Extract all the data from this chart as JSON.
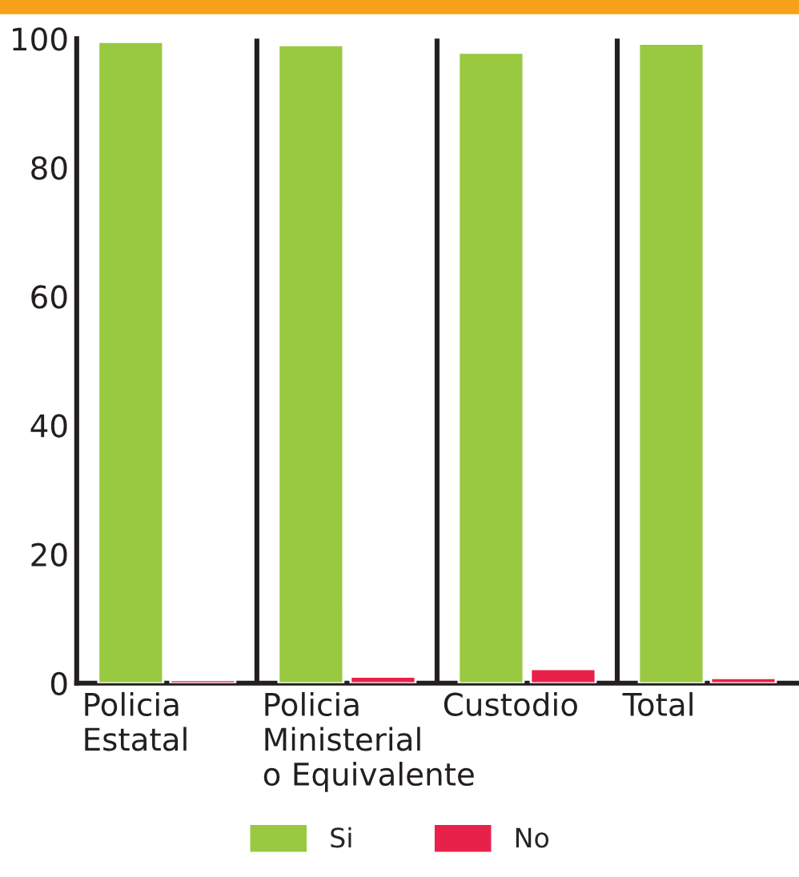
{
  "chart_data": {
    "type": "bar",
    "categories": [
      "Policia\nEstatal",
      "Policia\nMinisterial\no Equivalente",
      "Custodio",
      "Total"
    ],
    "series": [
      {
        "name": "Si",
        "color": "#99c941",
        "values": [
          99.5,
          99.0,
          97.8,
          99.2
        ]
      },
      {
        "name": "No",
        "color": "#e8214a",
        "values": [
          0.5,
          1.0,
          2.2,
          0.8
        ]
      }
    ],
    "ylim": [
      0,
      100
    ],
    "yticks": [
      0,
      20,
      40,
      60,
      80,
      100
    ],
    "grid": false,
    "legend": "bottom"
  }
}
